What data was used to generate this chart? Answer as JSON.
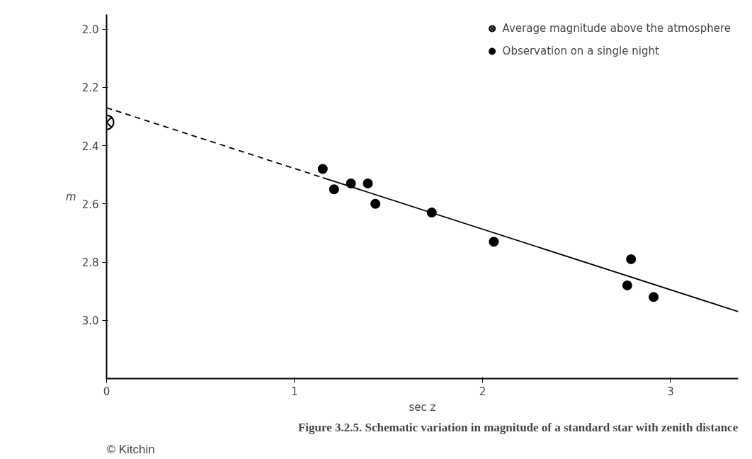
{
  "chart_data": {
    "type": "scatter",
    "xlabel": "sec z",
    "ylabel": "m",
    "xlim": [
      0,
      3.36
    ],
    "ylim": [
      3.2,
      1.95
    ],
    "xticks": [
      0,
      1,
      2,
      3
    ],
    "yticks": [
      {
        "value": 2.0,
        "label": "2.0"
      },
      {
        "value": 2.2,
        "label": "2.2"
      },
      {
        "value": 2.4,
        "label": "2.4"
      },
      {
        "value": 2.6,
        "label": "2.6"
      },
      {
        "value": 2.8,
        "label": "2.8"
      },
      {
        "value": 3.0,
        "label": "3.0"
      }
    ],
    "grid": false,
    "legend": "top right",
    "series": [
      {
        "name": "Average magnitude above the atmosphere",
        "marker": "cross",
        "color": "#000000",
        "x": [
          0
        ],
        "values": [
          2.32
        ]
      },
      {
        "name": "Observation on a single night",
        "marker": "circle",
        "color": "#000000",
        "x": [
          1.15,
          1.21,
          1.3,
          1.39,
          1.43,
          1.73,
          2.06,
          2.79,
          2.77,
          2.91
        ],
        "values": [
          2.48,
          2.55,
          2.53,
          2.53,
          2.6,
          2.63,
          2.73,
          2.79,
          2.88,
          2.92
        ]
      },
      {
        "type": "line",
        "line_style": "dashed",
        "color": "#000000",
        "x": [
          0,
          1.15
        ],
        "values": [
          2.27,
          2.51
        ]
      },
      {
        "type": "line",
        "line_style": "solid",
        "color": "#000000",
        "x": [
          1.15,
          3.36
        ],
        "values": [
          2.51,
          2.97
        ]
      }
    ],
    "annotations": [
      "Figure 3.2.5. Schematic variation in magnitude of a standard star with zenith distance",
      "© Kitchin"
    ]
  }
}
